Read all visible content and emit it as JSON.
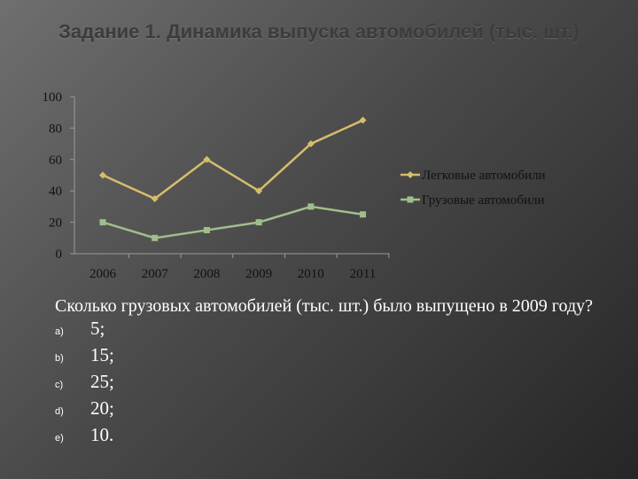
{
  "slide": {
    "title": "Задание 1. Динамика выпуска автомобилей (тыс. шт.)"
  },
  "chart_data": {
    "type": "line",
    "categories": [
      "2006",
      "2007",
      "2008",
      "2009",
      "2010",
      "2011"
    ],
    "series": [
      {
        "name": "Легковые автомобили",
        "values": [
          50,
          35,
          60,
          40,
          70,
          85
        ],
        "color": "#d6bd6a",
        "marker": "diamond"
      },
      {
        "name": "Грузовые автомобили",
        "values": [
          20,
          10,
          15,
          20,
          30,
          25
        ],
        "color": "#9fbf8a",
        "marker": "square"
      }
    ],
    "ylim": [
      0,
      100
    ],
    "yticks": [
      0,
      20,
      40,
      60,
      80,
      100
    ],
    "grid": false,
    "legend": "right"
  },
  "question": {
    "text": "Сколько грузовых автомобилей (тыс. шт.) было выпущено в 2009 году?",
    "options": [
      {
        "marker": "a)",
        "text": "5;"
      },
      {
        "marker": "b)",
        "text": "15;"
      },
      {
        "marker": "c)",
        "text": "25;"
      },
      {
        "marker": "d)",
        "text": "20;"
      },
      {
        "marker": "e)",
        "text": "10."
      }
    ]
  }
}
